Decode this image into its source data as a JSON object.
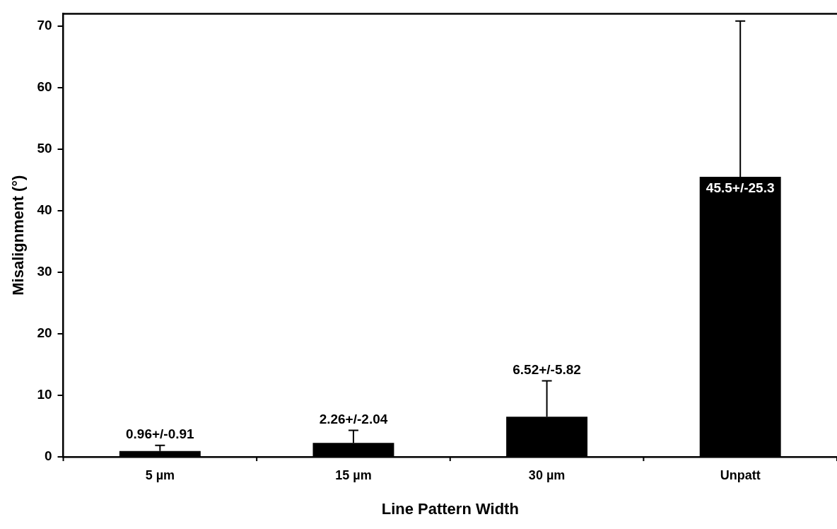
{
  "chart_data": {
    "type": "bar",
    "xlabel": "Line Pattern Width",
    "ylabel": "Misalignment (°)",
    "categories": [
      "5 µm",
      "15 µm",
      "30 µm",
      "Unpatt"
    ],
    "values": [
      0.96,
      2.26,
      6.52,
      45.5
    ],
    "color": "#000000",
    "errors": [
      [
        0.96,
        1.87
      ],
      [
        2.26,
        4.3
      ],
      [
        6.52,
        12.34
      ],
      [
        45.5,
        70.8
      ]
    ],
    "value_labels": [
      "0.96+/-0.91",
      "2.26+/-2.04",
      "6.52+/-5.82",
      "45.5+/-25.3"
    ],
    "ylim": [
      0,
      72
    ],
    "yticks": [
      0,
      10,
      20,
      30,
      40,
      50,
      60,
      70
    ],
    "grid": false,
    "legend": false
  }
}
